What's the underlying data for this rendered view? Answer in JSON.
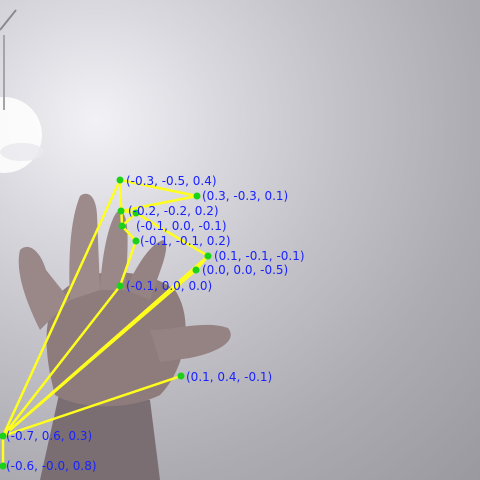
{
  "photo": {
    "subject": "open hand raised in front of a ceiling light",
    "skeleton_color": "#ffff1e",
    "joint_color": "#19d219",
    "label_color": "#1a22ff"
  },
  "landmark_labels": [
    {
      "text": "(-0.3, -0.5, 0.4)"
    },
    {
      "text": "(0.3, -0.3, 0.1)"
    },
    {
      "text": "(-0.2, -0.2, 0.2)"
    },
    {
      "text": "(-0.1, 0.0, -0.1)"
    },
    {
      "text": "(-0.1, -0.1, 0.2)"
    },
    {
      "text": "(0.1, -0.1, -0.1)"
    },
    {
      "text": "(0.0, 0.0, -0.5)"
    },
    {
      "text": "(-0.1, 0.0, 0.0)"
    },
    {
      "text": "(0.1, 0.4, -0.1)"
    },
    {
      "text": "(-0.7, 0.6, 0.3)"
    },
    {
      "text": "(-0.6, -0.0, 0.8)"
    }
  ]
}
